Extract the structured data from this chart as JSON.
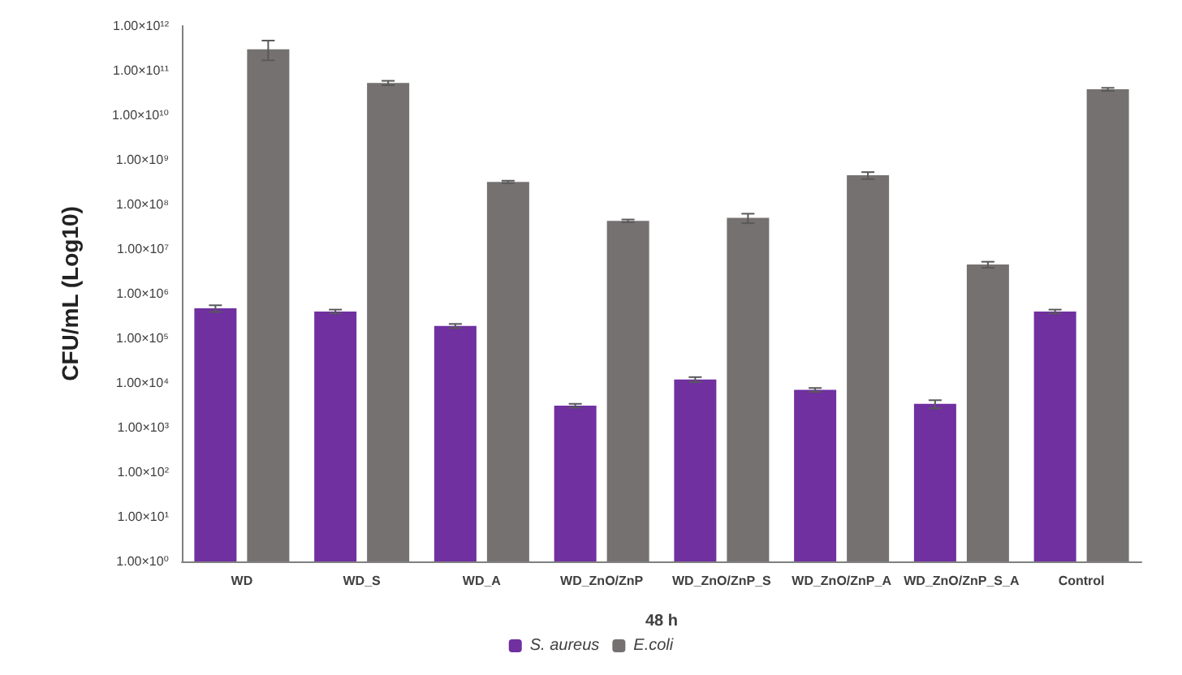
{
  "chart_data": {
    "type": "bar",
    "xlabel": "48 h",
    "ylabel": "CFU/mL (Log10)",
    "categories": [
      "WD",
      "WD_S",
      "WD_A",
      "WD_ZnO/ZnP",
      "WD_ZnO/ZnP_S",
      "WD_ZnO/ZnP_A",
      "WD_ZnO/ZnP_S_A",
      "Control"
    ],
    "series": [
      {
        "name": "S. aureus",
        "color": "#7030a0",
        "values": [
          470000,
          400000,
          190000,
          3100,
          12000,
          7000,
          3400,
          400000
        ],
        "errors": [
          80000,
          40000,
          20000,
          300,
          1500,
          700,
          700,
          40000
        ]
      },
      {
        "name": "E.coli",
        "color": "#767171",
        "values": [
          300000000000,
          53000000000,
          320000000,
          43000000,
          50000000,
          450000000,
          4500000,
          38000000000
        ],
        "errors": [
          [
            170000000000,
            470000000000
          ],
          6000000000,
          20000000,
          3000000,
          12000000,
          80000000,
          700000,
          3000000000
        ]
      }
    ],
    "log": true,
    "ylim": [
      1,
      1000000000000
    ],
    "yticks": [
      {
        "value": 1,
        "label": "1.00×10⁰"
      },
      {
        "value": 10,
        "label": "1.00×10¹"
      },
      {
        "value": 100,
        "label": "1.00×10²"
      },
      {
        "value": 1000,
        "label": "1.00×10³"
      },
      {
        "value": 10000,
        "label": "1.00×10⁴"
      },
      {
        "value": 100000,
        "label": "1.00×10⁵"
      },
      {
        "value": 1000000,
        "label": "1.00×10⁶"
      },
      {
        "value": 10000000,
        "label": "1.00×10⁷"
      },
      {
        "value": 100000000,
        "label": "1.00×10⁸"
      },
      {
        "value": 1000000000,
        "label": "1.00×10⁹"
      },
      {
        "value": 10000000000,
        "label": "1.00×10¹⁰"
      },
      {
        "value": 100000000000,
        "label": "1.00×10¹¹"
      },
      {
        "value": 1000000000000,
        "label": "1.00×10¹²"
      }
    ],
    "grid": false,
    "legend": "bottom"
  }
}
